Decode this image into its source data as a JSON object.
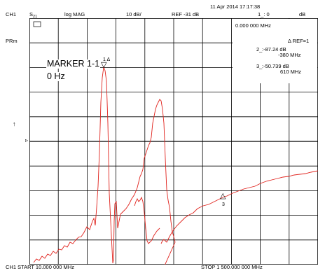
{
  "header": {
    "timestamp": "11 Apr 2014  17:17:38",
    "channel": "CH1",
    "param_s": "S",
    "param_sub": "21",
    "format": "log MAG",
    "scale": "10 dB/",
    "reference": "REF -31 dB",
    "marker_readout_label": "1_: 0",
    "marker_readout_unit": "dB",
    "marker_freq_readout": "0.000 000 MHz"
  },
  "left_labels": {
    "prm": "PRm",
    "pointer_up": "↑",
    "ref_pointer": "▹"
  },
  "marker_box": {
    "title": "MARKER 1-1",
    "value": "0 Hz"
  },
  "delta_ref": "Δ REF=1",
  "marker_table": [
    {
      "id": "2_",
      "value": ":-87.24  dB",
      "freq": "-380  MHz"
    },
    {
      "id": "3_",
      "value": ":-50.739 dB",
      "freq": "610  MHz"
    }
  ],
  "markers_on_trace": [
    {
      "label": "1 Δ",
      "symbol": "▽"
    },
    {
      "label": "3",
      "symbol": "△"
    }
  ],
  "footer": {
    "start": "CH1 START  10.000 000 MHz",
    "stop": "STOP 1 500.000 000 MHz"
  },
  "colors": {
    "trace": "#e0221c",
    "grid": "#000000",
    "background": "#ffffff"
  }
}
